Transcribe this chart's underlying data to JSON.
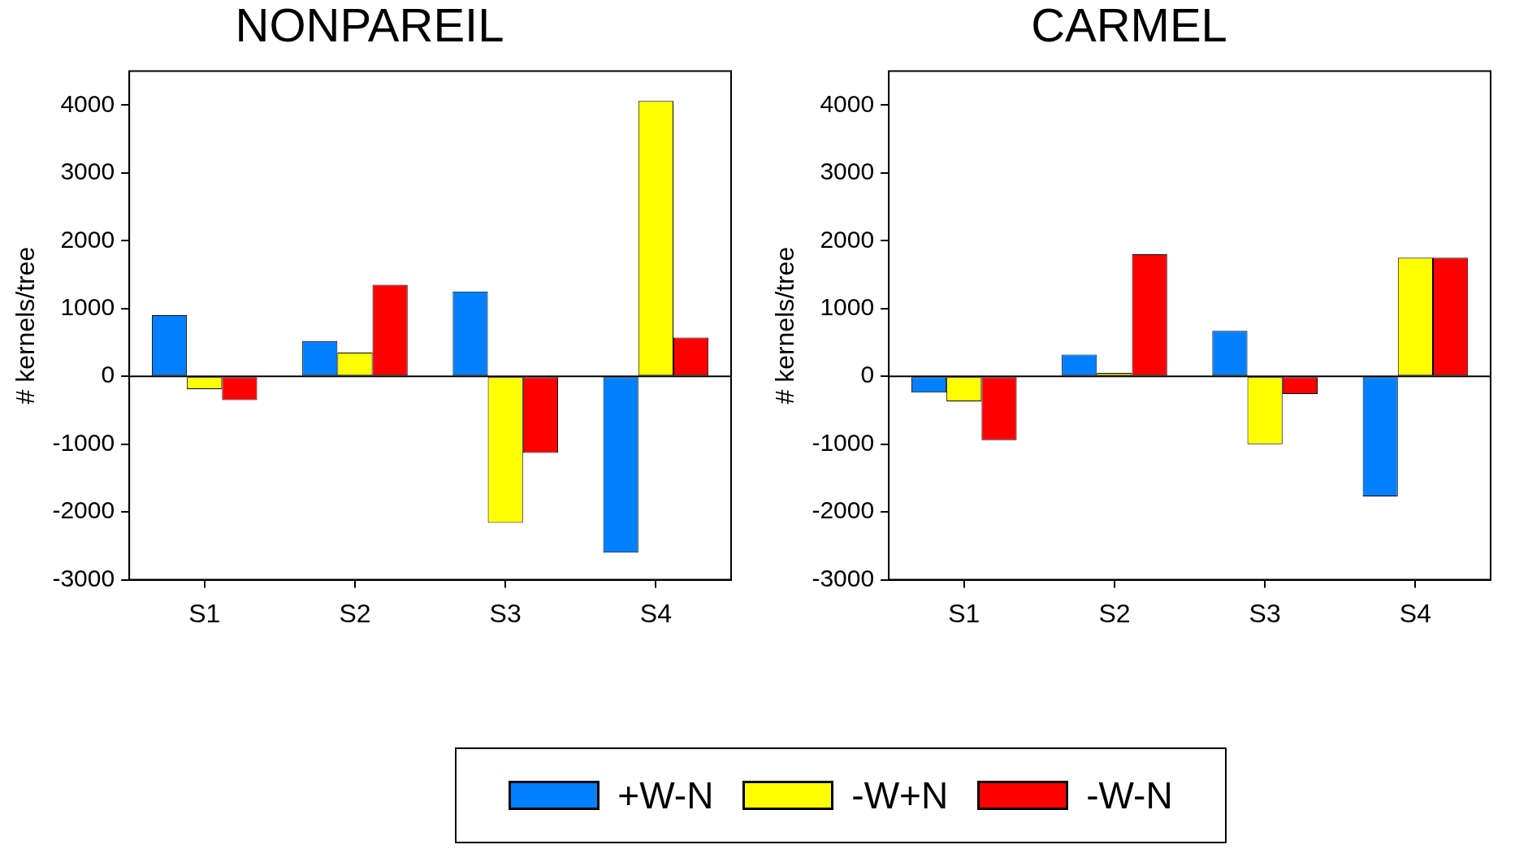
{
  "chart_data": [
    {
      "type": "bar",
      "title": "NONPAREIL",
      "ylabel": "# kernels/tree",
      "categories": [
        "S1",
        "S2",
        "S3",
        "S4"
      ],
      "series": [
        {
          "name": "+W-N",
          "color": "#0080ff",
          "values": [
            900,
            520,
            1250,
            -2600
          ]
        },
        {
          "name": "-W+N",
          "color": "#ffff00",
          "values": [
            -190,
            350,
            -2160,
            4060
          ]
        },
        {
          "name": "-W-N",
          "color": "#ff0000",
          "values": [
            -350,
            1350,
            -1130,
            570
          ]
        }
      ],
      "ylim": [
        -3000,
        4500
      ],
      "yticks": [
        -3000,
        -2000,
        -1000,
        0,
        1000,
        2000,
        3000,
        4000
      ],
      "legend": "bottom"
    },
    {
      "type": "bar",
      "title": "CARMEL",
      "ylabel": "# kernels/tree",
      "categories": [
        "S1",
        "S2",
        "S3",
        "S4"
      ],
      "series": [
        {
          "color": "#0080ff",
          "values": [
            -240,
            320,
            670,
            -1770
          ]
        },
        {
          "color": "#ffff00",
          "values": [
            -370,
            50,
            -1000,
            1750
          ]
        },
        {
          "color": "#ff0000",
          "values": [
            -940,
            1800,
            -260,
            1750
          ]
        }
      ],
      "ylim": [
        -3000,
        4500
      ],
      "yticks": [
        -3000,
        -2000,
        -1000,
        0,
        1000,
        2000,
        3000,
        4000
      ]
    }
  ]
}
